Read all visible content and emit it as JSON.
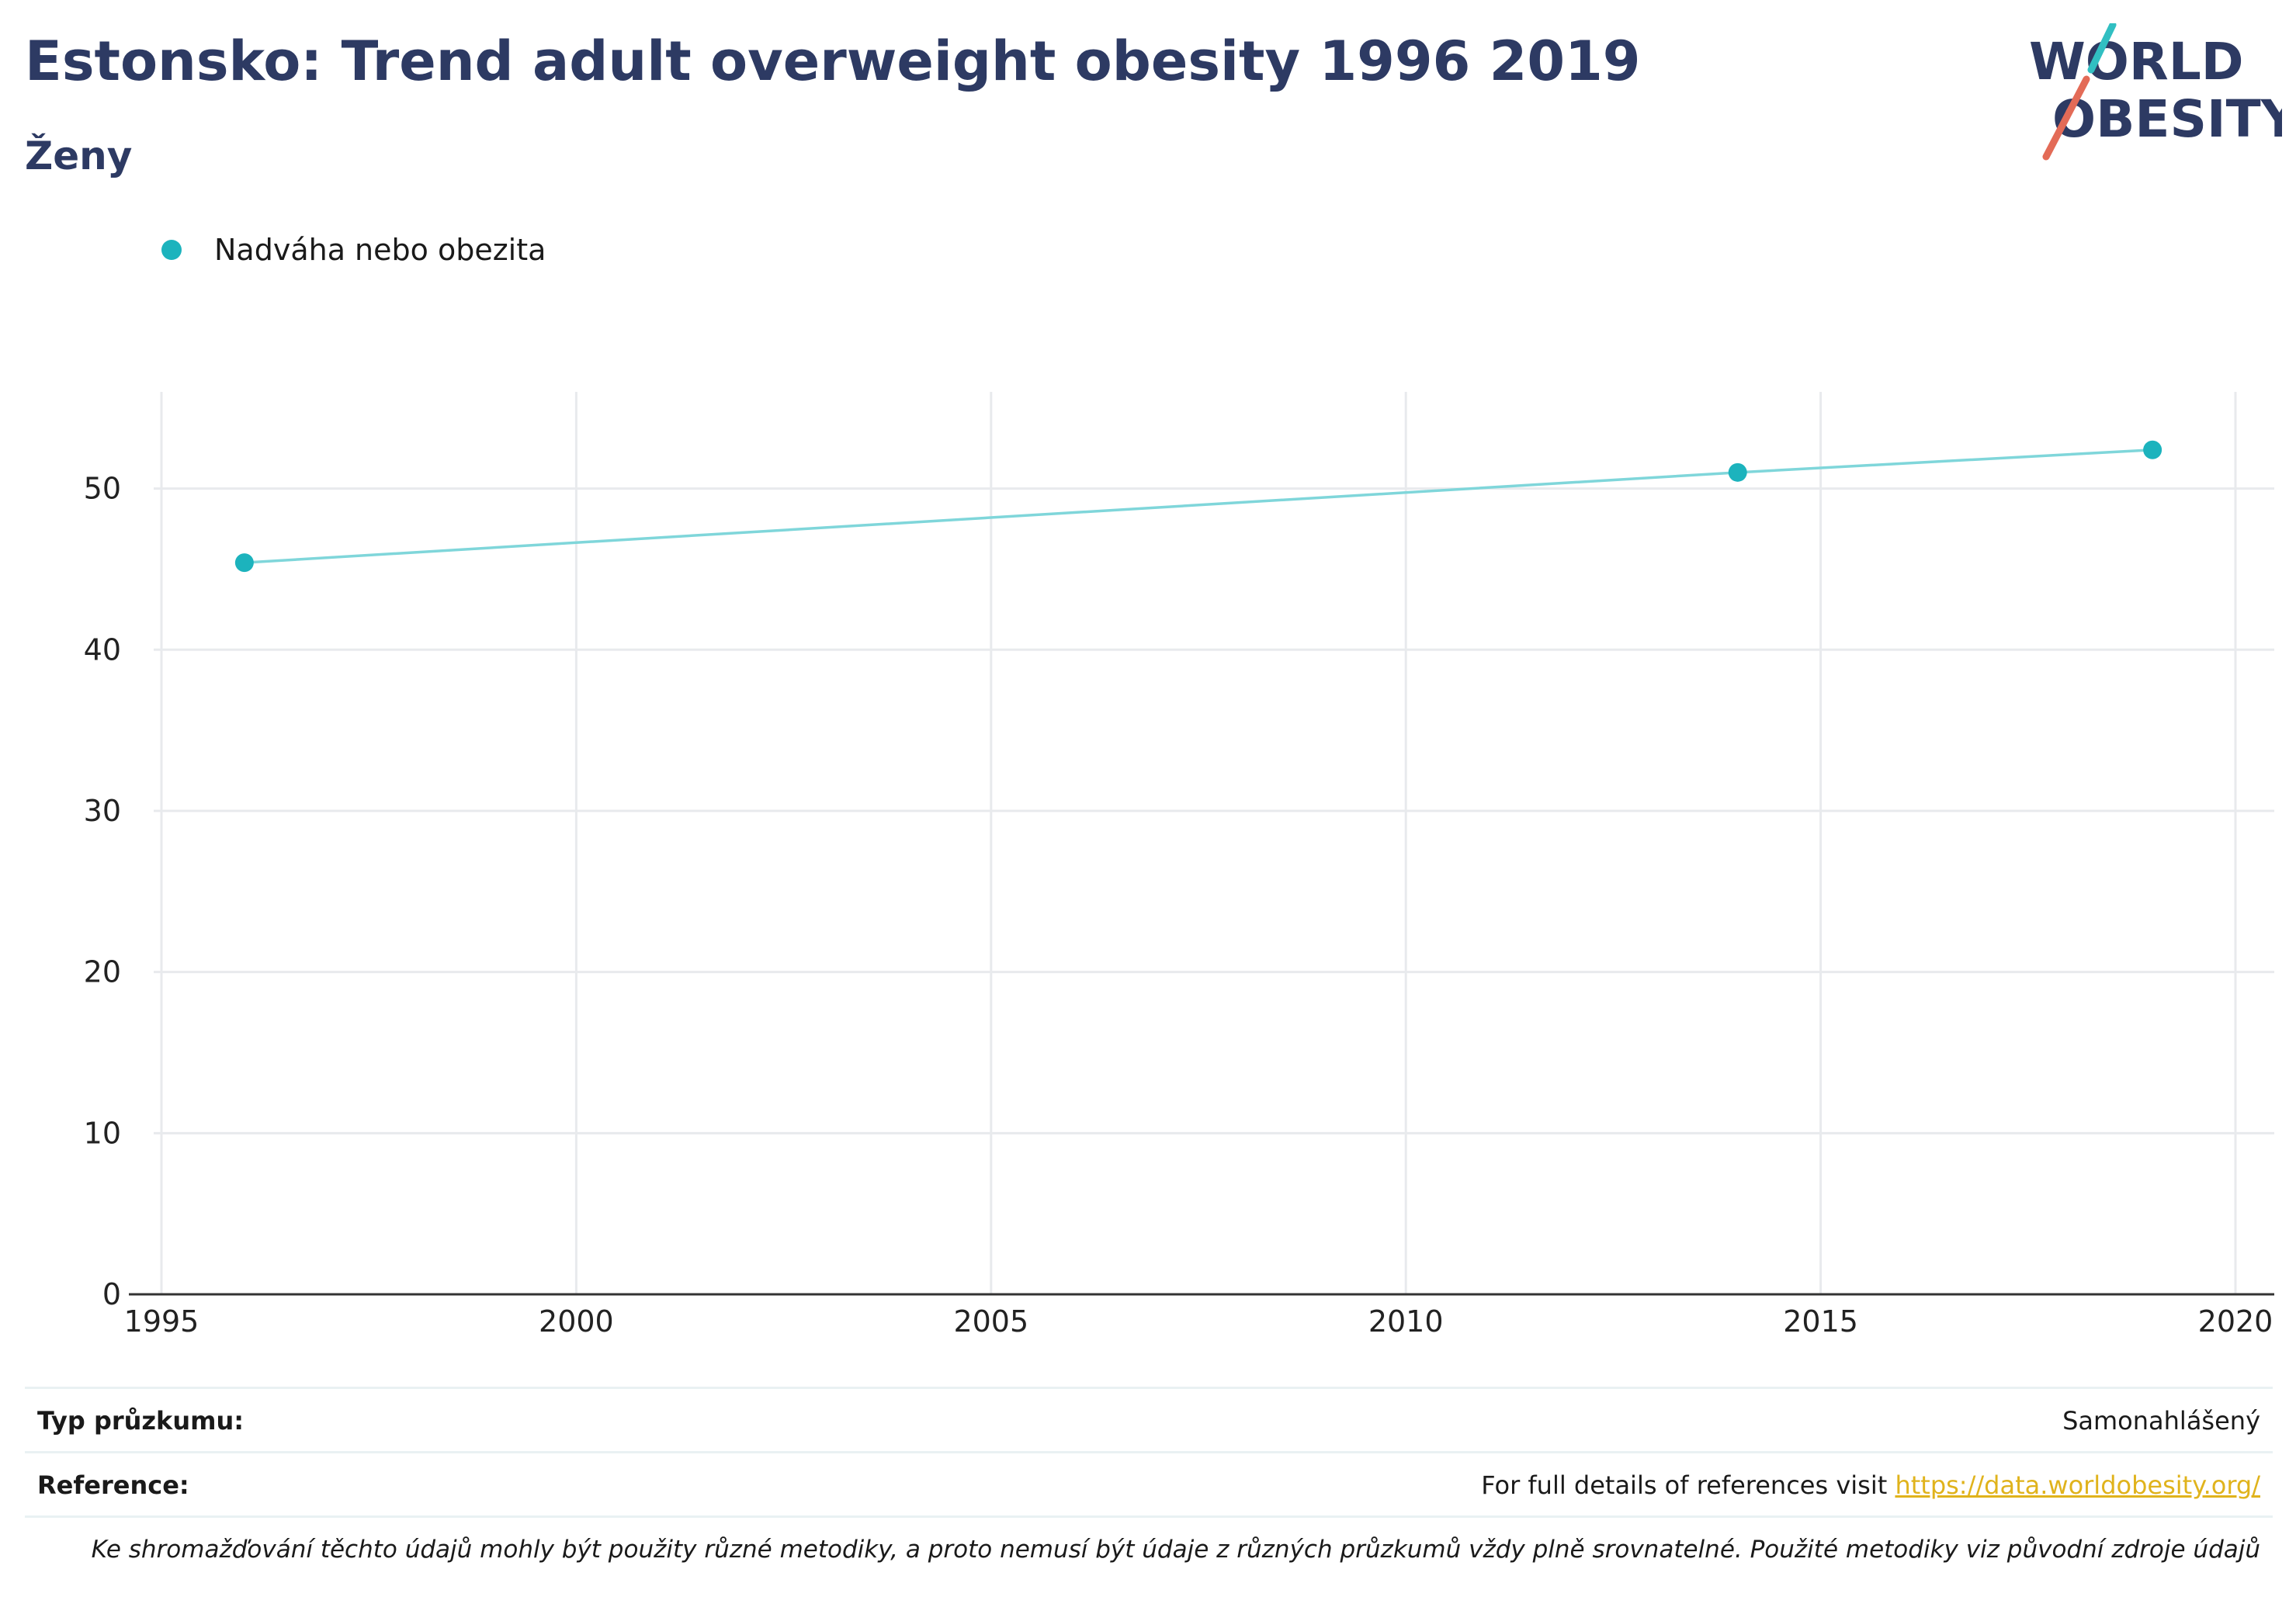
{
  "header": {
    "title": "Estonsko: Trend adult overweight obesity 1996 2019",
    "subtitle": "Ženy"
  },
  "logo": {
    "line1": "WORLD",
    "line2": "OBESITY"
  },
  "colors": {
    "title": "#2d3a63",
    "series": "#1cb3bd",
    "line": "#7fd6da",
    "logo_teal": "#31bfc2",
    "logo_red": "#e36b57",
    "link": "#e0b31c"
  },
  "chart_data": {
    "type": "line",
    "series": [
      {
        "name": "Nadváha nebo obezita",
        "x": [
          1996,
          2014,
          2019
        ],
        "y": [
          45.4,
          51.0,
          52.4
        ]
      }
    ],
    "xlim": [
      1995,
      2020
    ],
    "ylim": [
      0,
      56
    ],
    "xticks": [
      1995,
      2000,
      2005,
      2010,
      2015,
      2020
    ],
    "yticks": [
      0,
      10,
      20,
      30,
      40,
      50
    ],
    "grid": true,
    "legend_position": "top-left",
    "xlabel": "",
    "ylabel": ""
  },
  "footer": {
    "survey_label": "Typ průzkumu:",
    "survey_value": "Samonahlášený",
    "reference_label": "Reference:",
    "reference_text": "For full details of references visit ",
    "reference_link": "https://data.worldobesity.org/",
    "note": "Ke shromažďování těchto údajů mohly být použity různé metodiky, a proto nemusí být údaje z různých průzkumů vždy plně srovnatelné. Použité metodiky viz původní zdroje údajů"
  }
}
